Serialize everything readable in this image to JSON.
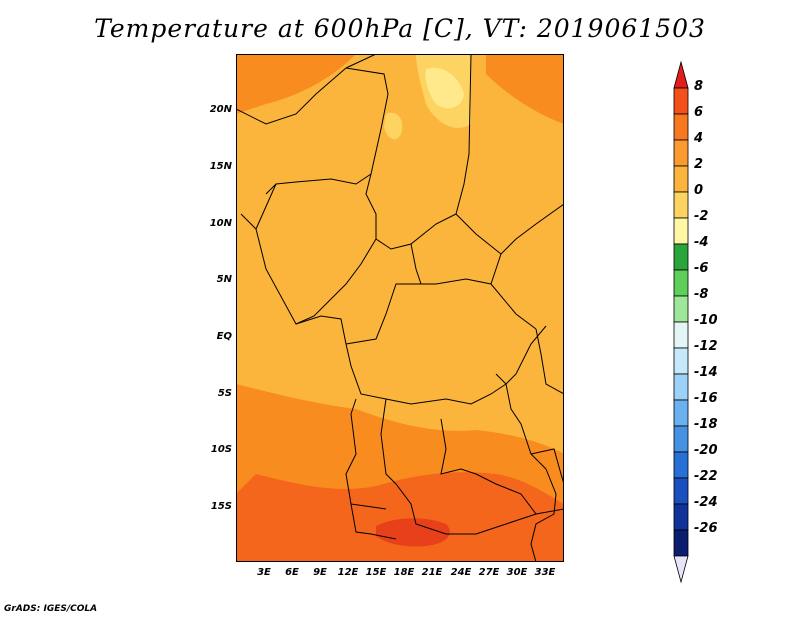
{
  "title": "Temperature at 600hPa [C], VT: 2019061503",
  "credit": "GrADS: IGES/COLA",
  "map": {
    "variable": "Temperature",
    "level": "600hPa",
    "units": "C",
    "valid_time": "2019061503",
    "lat_labels": [
      "20N",
      "15N",
      "10N",
      "5N",
      "EQ",
      "5S",
      "10S",
      "15S"
    ],
    "lon_labels": [
      "3E",
      "6E",
      "9E",
      "12E",
      "15E",
      "18E",
      "21E",
      "24E",
      "27E",
      "30E",
      "33E"
    ],
    "fill_colors": {
      "base": "#fbb43c",
      "warm": "#f98c1f",
      "hot": "#f4661c",
      "hotter": "#e8401a",
      "cool": "#fdd462",
      "coolest": "#ffe98a"
    }
  },
  "colorbar": {
    "labels": [
      "8",
      "6",
      "4",
      "2",
      "0",
      "-2",
      "-4",
      "-6",
      "-8",
      "-10",
      "-12",
      "-14",
      "-16",
      "-18",
      "-20",
      "-22",
      "-24",
      "-26"
    ],
    "colors": [
      "#e31e1a",
      "#f4501c",
      "#f8781f",
      "#fb9a2e",
      "#fbb43c",
      "#fdd462",
      "#fff7a6",
      "#2aa53a",
      "#5fcf5c",
      "#9ee69a",
      "#e4f5f6",
      "#c6e8fb",
      "#9dd2f8",
      "#6ab2ef",
      "#4592e3",
      "#2771d6",
      "#1a4fbf",
      "#103399",
      "#0b1d6f",
      "#e6e4f8"
    ]
  }
}
